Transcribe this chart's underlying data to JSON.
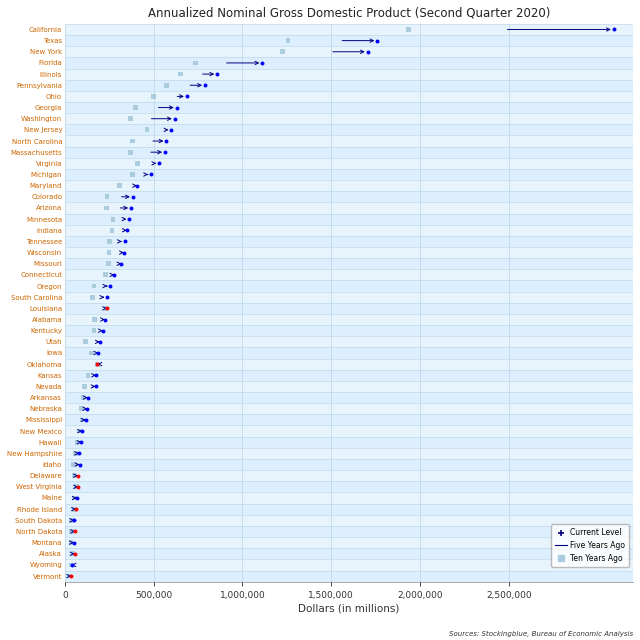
{
  "title": "Annualized Nominal Gross Domestic Product (Second Quarter 2020)",
  "xlabel": "Dollars (in millions)",
  "source": "Sources: Stockingblue, Bureau of Economic Analysis",
  "states": [
    "California",
    "Texas",
    "New York",
    "Florida",
    "Illinois",
    "Pennsylvania",
    "Ohio",
    "Georgia",
    "Washington",
    "New Jersey",
    "North Carolina",
    "Massachusetts",
    "Virginia",
    "Michigan",
    "Maryland",
    "Colorado",
    "Arizona",
    "Minnesota",
    "Indiana",
    "Tennessee",
    "Wisconsin",
    "Missouri",
    "Connecticut",
    "Oregon",
    "South Carolina",
    "Louisiana",
    "Alabama",
    "Kentucky",
    "Utah",
    "Iowa",
    "Oklahoma",
    "Kansas",
    "Nevada",
    "Arkansas",
    "Nebraska",
    "Mississippi",
    "New Mexico",
    "Hawaii",
    "New Hampshire",
    "Idaho",
    "Delaware",
    "West Virginia",
    "Maine",
    "Rhode Island",
    "South Dakota",
    "North Dakota",
    "Montana",
    "Alaska",
    "Wyoming",
    "Vermont"
  ],
  "current": [
    3091000,
    1759000,
    1705000,
    1111000,
    857000,
    788000,
    686000,
    629000,
    618000,
    599000,
    571000,
    563000,
    530000,
    484000,
    406000,
    382000,
    372000,
    362000,
    348000,
    336000,
    332000,
    318000,
    278000,
    254000,
    237000,
    237000,
    225000,
    213000,
    196000,
    188000,
    183000,
    175000,
    172000,
    128000,
    126000,
    116000,
    96000,
    93000,
    80000,
    82000,
    73000,
    73000,
    66000,
    62000,
    53000,
    57000,
    50000,
    54000,
    37000,
    35000
  ],
  "five_years": [
    2476000,
    1546000,
    1493000,
    895000,
    760000,
    690000,
    617000,
    511000,
    471000,
    552000,
    480000,
    468000,
    488000,
    449000,
    377000,
    303000,
    296000,
    317000,
    320000,
    299000,
    302000,
    295000,
    260000,
    219000,
    198000,
    236000,
    196000,
    196000,
    165000,
    180000,
    200000,
    160000,
    157000,
    118000,
    113000,
    108000,
    94000,
    84000,
    73000,
    67000,
    72000,
    68000,
    57000,
    56000,
    46000,
    52000,
    44000,
    51000,
    39000,
    32000
  ],
  "ten_years": [
    1936000,
    1256000,
    1225000,
    736000,
    653000,
    572000,
    497000,
    395000,
    370000,
    462000,
    381000,
    370000,
    408000,
    382000,
    308000,
    237000,
    232000,
    271000,
    265000,
    249000,
    248000,
    243000,
    229000,
    163000,
    157000,
    231000,
    165000,
    163000,
    117000,
    149000,
    182000,
    130000,
    112000,
    102000,
    95000,
    96000,
    80000,
    68000,
    60000,
    48000,
    55000,
    65000,
    52000,
    53000,
    37000,
    35000,
    34000,
    45000,
    37000,
    27000
  ],
  "dot_colors": [
    "blue",
    "blue",
    "blue",
    "blue",
    "blue",
    "blue",
    "blue",
    "blue",
    "blue",
    "blue",
    "blue",
    "blue",
    "blue",
    "blue",
    "blue",
    "blue",
    "blue",
    "blue",
    "blue",
    "blue",
    "blue",
    "blue",
    "blue",
    "blue",
    "blue",
    "red",
    "blue",
    "blue",
    "blue",
    "blue",
    "red",
    "blue",
    "blue",
    "blue",
    "blue",
    "blue",
    "blue",
    "blue",
    "blue",
    "blue",
    "red",
    "red",
    "blue",
    "red",
    "blue",
    "red",
    "blue",
    "red",
    "blue",
    "red"
  ],
  "bg_color": "#ddeeff",
  "row_bg_light": "#e8f4fb",
  "row_bg_dark": "#ddeeff",
  "grid_color": "#b8d4e8",
  "title_color": "#222222",
  "label_color": "#cc6600",
  "arrow_color": "#000080",
  "ten_year_color": "#aaccdd",
  "xlim": [
    0,
    3200000
  ],
  "xticks": [
    0,
    500000,
    1000000,
    1500000,
    2000000,
    2500000
  ]
}
